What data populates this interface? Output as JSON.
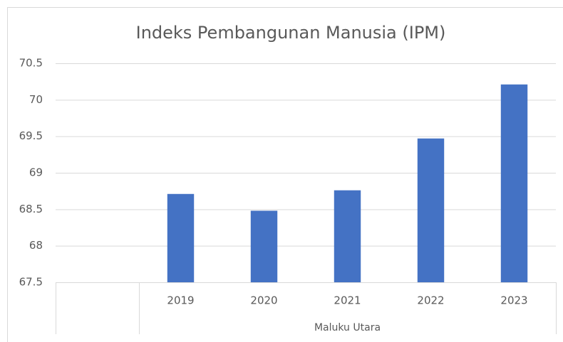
{
  "chart_data": {
    "type": "bar",
    "title": "Indeks Pembangunan Manusia (IPM)",
    "categories": [
      null,
      "2019",
      "2020",
      "2021",
      "2022",
      "2023"
    ],
    "group": "Maluku Utara",
    "values": [
      null,
      68.71,
      68.48,
      68.76,
      69.47,
      70.21
    ],
    "color": "#4472c4",
    "ylim": [
      67.5,
      70.5
    ],
    "yticks": [
      67.5,
      68,
      68.5,
      69,
      69.5,
      70,
      70.5
    ],
    "grid": true
  }
}
